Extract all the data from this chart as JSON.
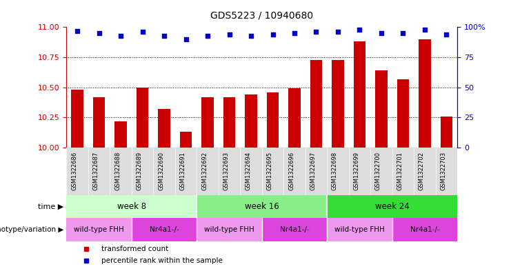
{
  "title": "GDS5223 / 10940680",
  "samples": [
    "GSM1322686",
    "GSM1322687",
    "GSM1322688",
    "GSM1322689",
    "GSM1322690",
    "GSM1322691",
    "GSM1322692",
    "GSM1322693",
    "GSM1322694",
    "GSM1322695",
    "GSM1322696",
    "GSM1322697",
    "GSM1322698",
    "GSM1322699",
    "GSM1322700",
    "GSM1322701",
    "GSM1322702",
    "GSM1322703"
  ],
  "transformed_count": [
    10.48,
    10.42,
    10.22,
    10.5,
    10.32,
    10.13,
    10.42,
    10.42,
    10.44,
    10.46,
    10.49,
    10.73,
    10.73,
    10.88,
    10.64,
    10.57,
    10.9,
    10.26
  ],
  "percentile_rank": [
    97,
    95,
    93,
    96,
    93,
    90,
    93,
    94,
    93,
    94,
    95,
    96,
    96,
    98,
    95,
    95,
    98,
    94
  ],
  "bar_color": "#cc0000",
  "dot_color": "#0000cc",
  "ylim_left": [
    10,
    11
  ],
  "ylim_right": [
    0,
    100
  ],
  "yticks_left": [
    10,
    10.25,
    10.5,
    10.75,
    11
  ],
  "yticks_right": [
    0,
    25,
    50,
    75,
    100
  ],
  "left_axis_color": "#cc0000",
  "right_axis_color": "#0000cc",
  "sample_bg_color": "#dddddd",
  "time_groups": [
    {
      "label": "week 8",
      "start": 0,
      "end": 6,
      "color": "#ccffcc"
    },
    {
      "label": "week 16",
      "start": 6,
      "end": 12,
      "color": "#88ee88"
    },
    {
      "label": "week 24",
      "start": 12,
      "end": 18,
      "color": "#33dd33"
    }
  ],
  "geno_groups": [
    {
      "label": "wild-type FHH",
      "start": 0,
      "end": 3,
      "color": "#ee99ee"
    },
    {
      "label": "Nr4a1-/-",
      "start": 3,
      "end": 6,
      "color": "#dd44dd"
    },
    {
      "label": "wild-type FHH",
      "start": 6,
      "end": 9,
      "color": "#ee99ee"
    },
    {
      "label": "Nr4a1-/-",
      "start": 9,
      "end": 12,
      "color": "#dd44dd"
    },
    {
      "label": "wild-type FHH",
      "start": 12,
      "end": 15,
      "color": "#ee99ee"
    },
    {
      "label": "Nr4a1-/-",
      "start": 15,
      "end": 18,
      "color": "#dd44dd"
    }
  ],
  "background_color": "#ffffff",
  "grid_color": "#000000",
  "time_label": "time",
  "geno_label": "genotype/variation",
  "legend_items": [
    {
      "label": "transformed count",
      "color": "#cc0000"
    },
    {
      "label": "percentile rank within the sample",
      "color": "#0000cc"
    }
  ]
}
